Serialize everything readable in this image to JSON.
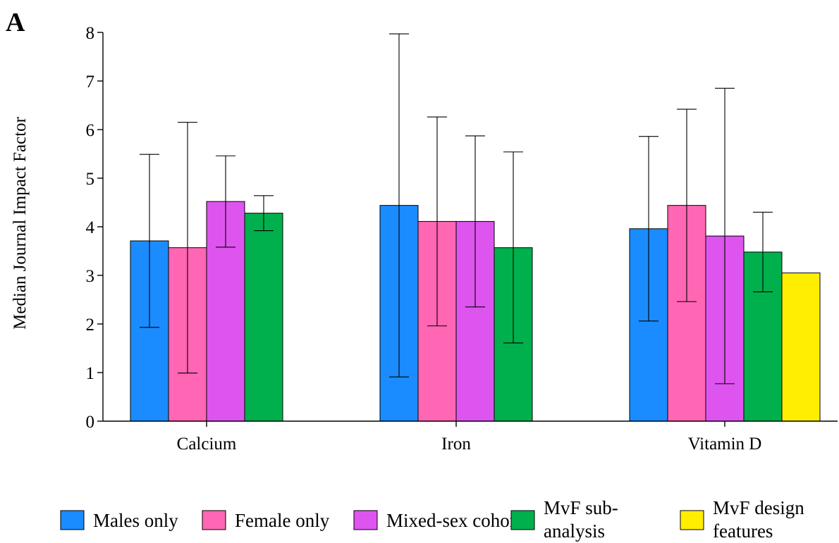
{
  "panel_label": "A",
  "chart_data": {
    "type": "bar",
    "ylabel": "Median Journal Impact Factor",
    "xlabel": "",
    "ylim": [
      0,
      8
    ],
    "yticks": [
      0,
      1,
      2,
      3,
      4,
      5,
      6,
      7,
      8
    ],
    "categories": [
      "Calcium",
      "Iron",
      "Vitamin D"
    ],
    "series": [
      {
        "name": "Males only",
        "color": "#1a8cff",
        "values": [
          3.71,
          4.44,
          3.96
        ],
        "err_low": [
          1.93,
          0.91,
          2.06
        ],
        "err_high": [
          5.49,
          7.97,
          5.86
        ]
      },
      {
        "name": "Female only",
        "color": "#ff66b3",
        "values": [
          3.57,
          4.11,
          4.44
        ],
        "err_low": [
          0.99,
          1.96,
          2.46
        ],
        "err_high": [
          6.15,
          6.26,
          6.42
        ]
      },
      {
        "name": "Mixed-sex cohort",
        "color": "#dd55ee",
        "values": [
          4.52,
          4.11,
          3.81
        ],
        "err_low": [
          3.58,
          2.35,
          0.77
        ],
        "err_high": [
          5.46,
          5.87,
          6.85
        ]
      },
      {
        "name": "MvF sub-analysis",
        "color": "#00b04c",
        "values": [
          4.28,
          3.57,
          3.48
        ],
        "err_low": [
          3.92,
          1.61,
          2.66
        ],
        "err_high": [
          4.64,
          5.54,
          4.3
        ]
      },
      {
        "name": "MvF design features",
        "color": "#ffee00",
        "values": [
          null,
          null,
          3.05
        ],
        "err_low": [
          null,
          null,
          null
        ],
        "err_high": [
          null,
          null,
          null
        ]
      }
    ],
    "legend": {
      "placement": "bottom",
      "labels": [
        {
          "lines": [
            "Males only"
          ]
        },
        {
          "lines": [
            "Female only"
          ]
        },
        {
          "lines": [
            "Mixed-sex cohort"
          ]
        },
        {
          "lines": [
            "MvF sub-",
            "analysis"
          ]
        },
        {
          "lines": [
            "MvF design",
            "features"
          ]
        }
      ]
    }
  }
}
